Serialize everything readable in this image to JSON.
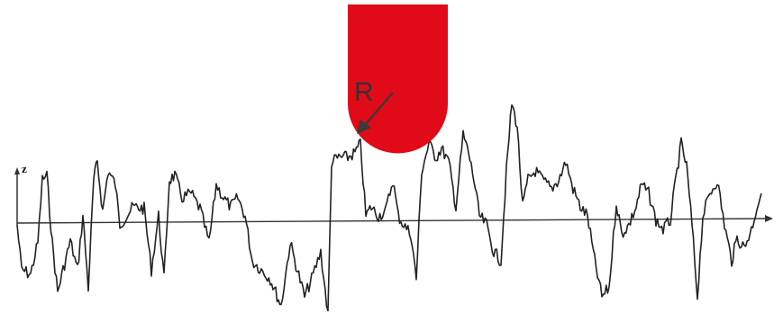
{
  "diagram": {
    "z_axis_label": "z",
    "radius_label": "R",
    "colors": {
      "stylus": "#e10a19",
      "profile": "#222222",
      "axis": "#333333",
      "arrow": "#3a3a3a"
    }
  }
}
